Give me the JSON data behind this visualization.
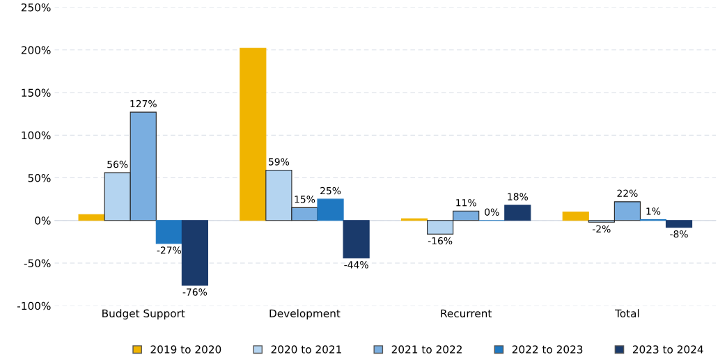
{
  "chart_data": {
    "type": "bar",
    "categories": [
      "Budget Support",
      "Development",
      "Recurrent",
      "Total"
    ],
    "series": [
      {
        "name": "2019 to 2020",
        "color": "#f0b400",
        "values": [
          7,
          202,
          2,
          10
        ]
      },
      {
        "name": "2020 to 2021",
        "color": "#b4d4f0",
        "values": [
          56,
          59,
          -16,
          -2
        ],
        "value_labels": [
          "56%",
          "59%",
          "-16%",
          "-2%"
        ]
      },
      {
        "name": "2021 to 2022",
        "color": "#7aaee0",
        "values": [
          127,
          15,
          11,
          22
        ],
        "value_labels": [
          "127%",
          "15%",
          "11%",
          "22%"
        ]
      },
      {
        "name": "2022 to 2023",
        "color": "#1f78c1",
        "values": [
          -27,
          25,
          0,
          1
        ],
        "value_labels": [
          "-27%",
          "25%",
          "0%",
          "1%"
        ]
      },
      {
        "name": "2023 to 2024",
        "color": "#1a3a6b",
        "values": [
          -76,
          -44,
          18,
          -8
        ],
        "value_labels": [
          "-76%",
          "-44%",
          "18%",
          "-8%"
        ]
      }
    ],
    "ylim": [
      -100,
      250
    ],
    "yticks": [
      {
        "value": -100,
        "label": "-100%"
      },
      {
        "value": -50,
        "label": "-50%"
      },
      {
        "value": 0,
        "label": "0%"
      },
      {
        "value": 50,
        "label": "50%"
      },
      {
        "value": 100,
        "label": "100%"
      },
      {
        "value": 150,
        "label": "150%"
      },
      {
        "value": 200,
        "label": "200%"
      },
      {
        "value": 250,
        "label": "250%"
      }
    ],
    "grid": "y",
    "legend": "bottom"
  }
}
